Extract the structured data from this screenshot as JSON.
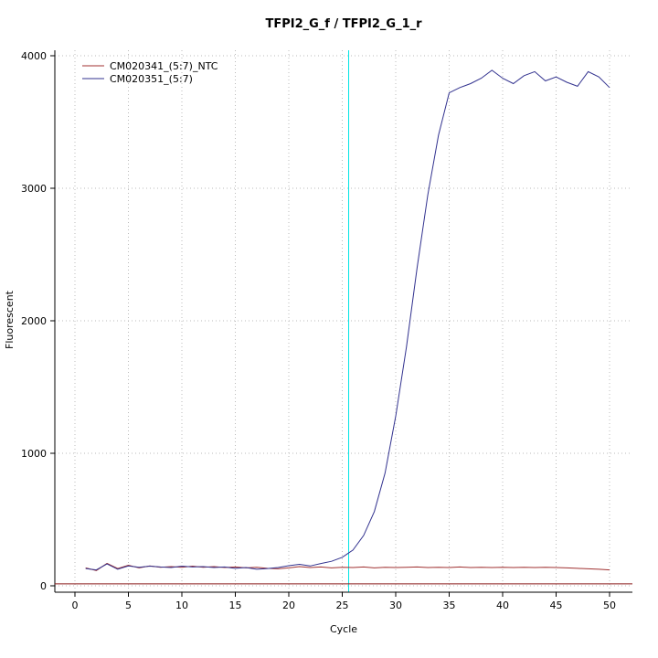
{
  "chart_data": {
    "type": "line",
    "title": "TFPI2_G_f / TFPI2_G_1_r",
    "xlabel": "Cycle",
    "ylabel": "Fluorescent",
    "xlim": [
      0,
      50
    ],
    "ylim": [
      0,
      4000
    ],
    "x_ticks": [
      0,
      5,
      10,
      15,
      20,
      25,
      30,
      35,
      40,
      45,
      50
    ],
    "y_ticks": [
      0,
      1000,
      2000,
      3000,
      4000
    ],
    "grid": "dotted",
    "legend_position": "top-left",
    "x": {
      "start": 1,
      "step": 1
    },
    "series": [
      {
        "name": "CM020341_(5:7)_NTC",
        "color": "#a03232",
        "values": [
          135,
          115,
          170,
          130,
          155,
          135,
          150,
          140,
          145,
          140,
          148,
          140,
          145,
          138,
          142,
          135,
          140,
          132,
          128,
          135,
          145,
          138,
          142,
          135,
          140,
          138,
          142,
          135,
          140,
          138,
          140,
          142,
          138,
          140,
          138,
          142,
          138,
          140,
          138,
          140,
          138,
          140,
          138,
          140,
          138,
          135,
          132,
          128,
          125,
          120
        ]
      },
      {
        "name": "CM020351_(5:7)",
        "color": "#32328f",
        "values": [
          130,
          120,
          165,
          125,
          150,
          140,
          148,
          142,
          138,
          148,
          142,
          145,
          138,
          142,
          132,
          138,
          125,
          130,
          138,
          152,
          162,
          150,
          168,
          185,
          215,
          270,
          380,
          560,
          850,
          1280,
          1800,
          2400,
          2950,
          3400,
          3720,
          3760,
          3790,
          3830,
          3890,
          3830,
          3790,
          3850,
          3880,
          3810,
          3840,
          3800,
          3770,
          3880,
          3840,
          3760
        ]
      }
    ],
    "ct_line": {
      "x": 25.6,
      "color": "#00e5e5"
    },
    "threshold_line": {
      "y": 15,
      "color": "#8b1a1a"
    }
  }
}
